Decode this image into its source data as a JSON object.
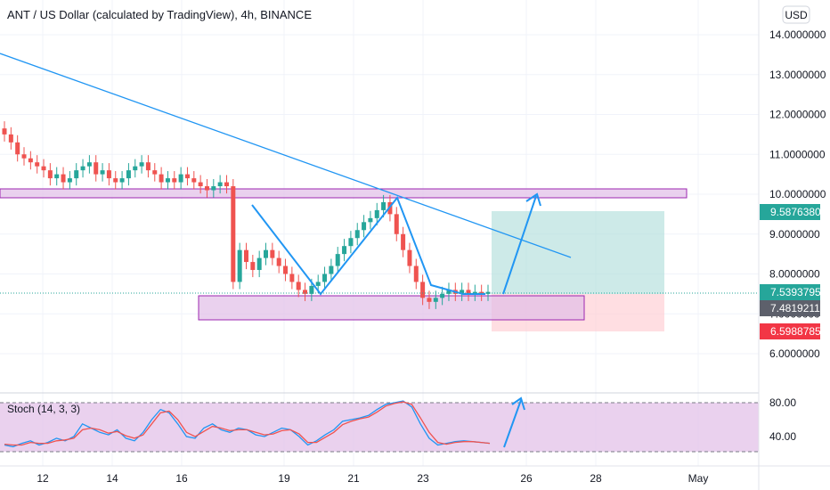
{
  "header": {
    "title": "ANT / US Dollar (calculated by TradingView), 4h, BINANCE",
    "currency_button": "USD"
  },
  "colors": {
    "up": "#26a69a",
    "down": "#ef5350",
    "trendline": "#2196f3",
    "zone_fill": "#e1bee7",
    "zone_stroke": "#9c27b0",
    "profit_zone": "#b2dfdb",
    "loss_zone": "#ffcdd2",
    "stoch_k": "#2196f3",
    "stoch_d": "#ef5350",
    "stoch_band": "#e1bee7"
  },
  "price_axis": {
    "ticks": [
      "14.0000000",
      "13.0000000",
      "12.0000000",
      "11.0000000",
      "10.0000000",
      "9.0000000",
      "8.0000000",
      "7.0000000",
      "6.0000000"
    ],
    "tags": [
      {
        "label": "9.5876380",
        "value": 9.587638,
        "color": "#26a69a"
      },
      {
        "label": "7.5393795",
        "value": 7.5393795,
        "color": "#26a69a"
      },
      {
        "label": "7.4819211",
        "value": 7.4819211,
        "color": "#5d606b"
      },
      {
        "label": "6.5988785",
        "value": 6.5988785,
        "color": "#f23645"
      }
    ]
  },
  "time_axis": {
    "labels": [
      "12",
      "14",
      "16",
      "19",
      "21",
      "23",
      "26",
      "28",
      "May"
    ]
  },
  "stoch": {
    "label": "Stoch (14, 3, 3)",
    "ticks": [
      "80.00",
      "40.00"
    ]
  },
  "chart_data": {
    "type": "candlestick",
    "title": "ANT / US Dollar (calculated by TradingView), 4h, BINANCE",
    "xlabel": "",
    "ylabel": "",
    "ylim": [
      5.5,
      14.5
    ],
    "x_ticks": [
      "12",
      "14",
      "16",
      "19",
      "21",
      "23",
      "26",
      "28",
      "May"
    ],
    "close_series": [
      11.5,
      11.3,
      11.0,
      10.9,
      10.8,
      10.7,
      10.6,
      10.4,
      10.5,
      10.3,
      10.4,
      10.6,
      10.7,
      10.8,
      10.5,
      10.6,
      10.4,
      10.3,
      10.4,
      10.6,
      10.7,
      10.8,
      10.6,
      10.5,
      10.3,
      10.4,
      10.3,
      10.5,
      10.4,
      10.3,
      10.2,
      10.1,
      10.2,
      10.3,
      10.2,
      7.8,
      8.6,
      8.3,
      8.1,
      8.4,
      8.6,
      8.4,
      8.2,
      8.0,
      7.8,
      7.6,
      7.5,
      7.7,
      7.8,
      8.0,
      8.2,
      8.5,
      8.7,
      8.9,
      9.1,
      9.3,
      9.4,
      9.6,
      9.8,
      9.5,
      9.0,
      8.6,
      8.2,
      7.8,
      7.4,
      7.3,
      7.4,
      7.5,
      7.6,
      7.5,
      7.6,
      7.5,
      7.55,
      7.5,
      7.55
    ],
    "series": [
      {
        "name": "Stoch %K",
        "values": [
          30,
          28,
          32,
          35,
          30,
          33,
          38,
          35,
          40,
          55,
          50,
          45,
          42,
          48,
          38,
          35,
          45,
          60,
          72,
          68,
          55,
          40,
          38,
          50,
          55,
          48,
          45,
          50,
          48,
          42,
          40,
          45,
          50,
          48,
          40,
          30,
          35,
          42,
          48,
          58,
          60,
          62,
          65,
          72,
          78,
          80,
          82,
          75,
          55,
          38,
          30,
          32,
          34,
          35,
          34,
          33,
          32
        ]
      },
      {
        "name": "Stoch %D",
        "values": [
          31,
          30,
          30,
          33,
          32,
          32,
          35,
          36,
          38,
          48,
          50,
          48,
          44,
          46,
          41,
          38,
          42,
          55,
          68,
          70,
          60,
          45,
          40,
          46,
          52,
          50,
          47,
          48,
          48,
          45,
          42,
          43,
          47,
          48,
          43,
          33,
          33,
          39,
          45,
          54,
          58,
          61,
          63,
          69,
          76,
          79,
          81,
          78,
          62,
          45,
          33,
          31,
          33,
          34,
          34,
          33,
          32
        ]
      }
    ],
    "annotations": {
      "resistance_level": 10.0,
      "support_zone": [
        7.2,
        7.6
      ],
      "position_entry": 7.5393795,
      "position_target": 9.587638,
      "position_stop": 6.5988785
    },
    "grid": true,
    "legend": "none"
  }
}
